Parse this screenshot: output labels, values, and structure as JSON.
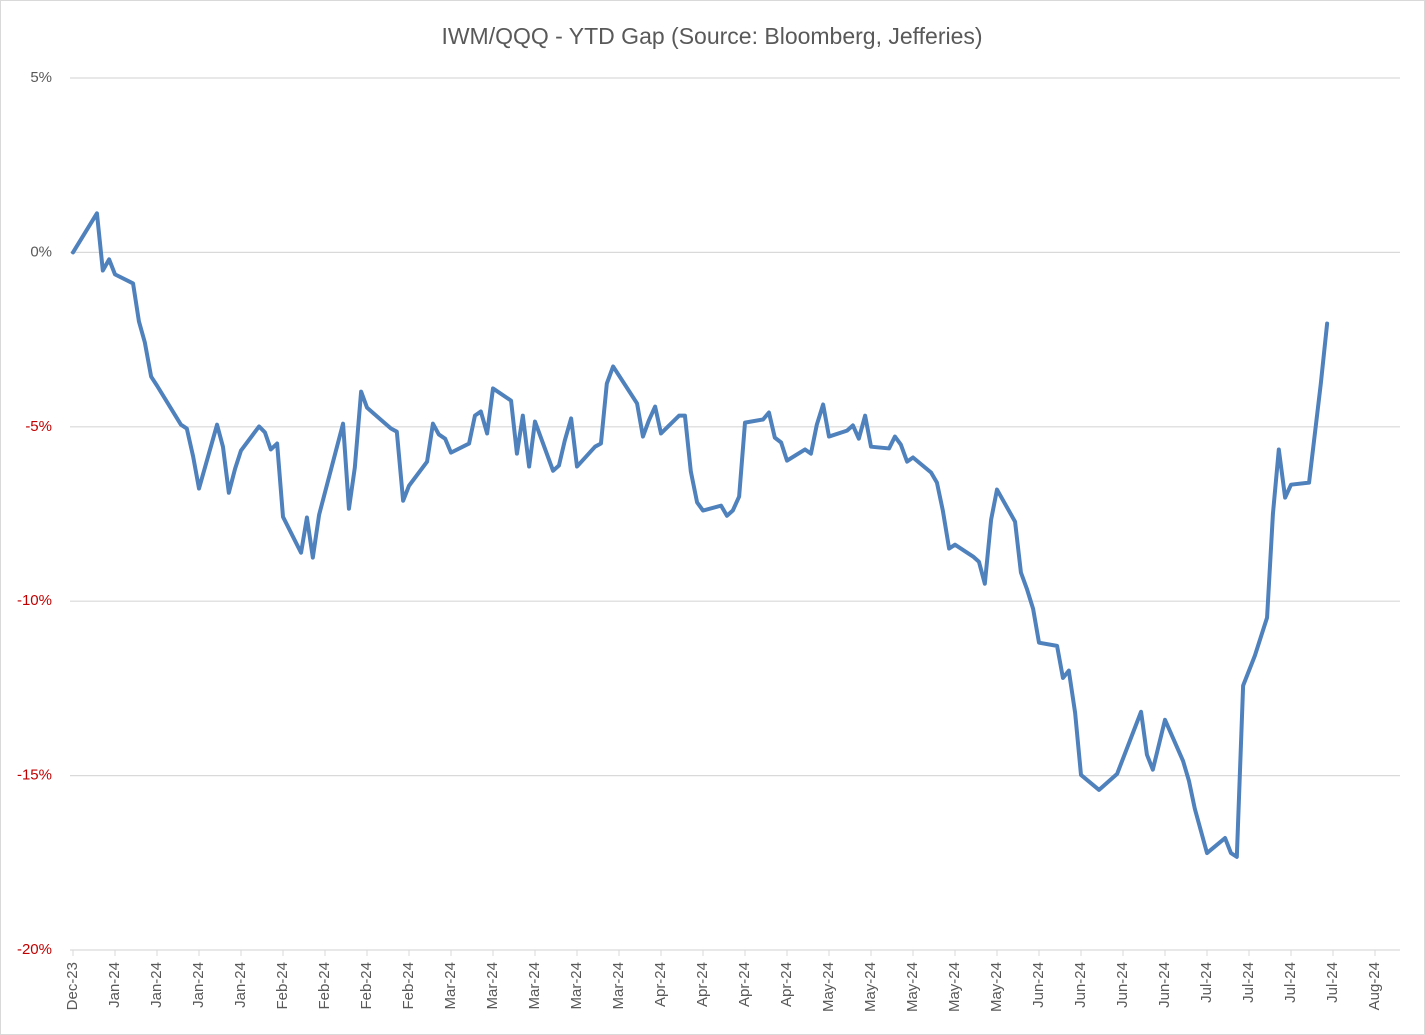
{
  "chart_data": {
    "type": "line",
    "title": "IWM/QQQ - YTD Gap (Source: Bloomberg, Jefferies)",
    "xlim": [
      0,
      31.5
    ],
    "xticks": [
      {
        "value": 0,
        "label": "Dec-23"
      },
      {
        "value": 1,
        "label": "Jan-24"
      },
      {
        "value": 2,
        "label": "Jan-24"
      },
      {
        "value": 3,
        "label": "Jan-24"
      },
      {
        "value": 4,
        "label": "Jan-24"
      },
      {
        "value": 5,
        "label": "Feb-24"
      },
      {
        "value": 6,
        "label": "Feb-24"
      },
      {
        "value": 7,
        "label": "Feb-24"
      },
      {
        "value": 8,
        "label": "Feb-24"
      },
      {
        "value": 9,
        "label": "Mar-24"
      },
      {
        "value": 10,
        "label": "Mar-24"
      },
      {
        "value": 11,
        "label": "Mar-24"
      },
      {
        "value": 12,
        "label": "Mar-24"
      },
      {
        "value": 13,
        "label": "Mar-24"
      },
      {
        "value": 14,
        "label": "Apr-24"
      },
      {
        "value": 15,
        "label": "Apr-24"
      },
      {
        "value": 16,
        "label": "Apr-24"
      },
      {
        "value": 17,
        "label": "Apr-24"
      },
      {
        "value": 18,
        "label": "May-24"
      },
      {
        "value": 19,
        "label": "May-24"
      },
      {
        "value": 20,
        "label": "May-24"
      },
      {
        "value": 21,
        "label": "May-24"
      },
      {
        "value": 22,
        "label": "May-24"
      },
      {
        "value": 23,
        "label": "Jun-24"
      },
      {
        "value": 24,
        "label": "Jun-24"
      },
      {
        "value": 25,
        "label": "Jun-24"
      },
      {
        "value": 26,
        "label": "Jun-24"
      },
      {
        "value": 27,
        "label": "Jul-24"
      },
      {
        "value": 28,
        "label": "Jul-24"
      },
      {
        "value": 29,
        "label": "Jul-24"
      },
      {
        "value": 30,
        "label": "Jul-24"
      },
      {
        "value": 31,
        "label": "Aug-24"
      }
    ],
    "ylim": [
      -20,
      5
    ],
    "yticks": [
      {
        "value": 5,
        "label": "5%"
      },
      {
        "value": 0,
        "label": "0%"
      },
      {
        "value": -5,
        "label": "-5%"
      },
      {
        "value": -10,
        "label": "-10%"
      },
      {
        "value": -15,
        "label": "-15%"
      },
      {
        "value": -20,
        "label": "-20%"
      }
    ],
    "grid": true,
    "negative_tick_color": "#c00000",
    "x": [
      0,
      0.57,
      0.71,
      0.86,
      1.0,
      1.43,
      1.57,
      1.71,
      1.86,
      2.0,
      2.57,
      2.71,
      2.86,
      3.0,
      3.43,
      3.57,
      3.71,
      3.86,
      4.0,
      4.43,
      4.57,
      4.71,
      4.86,
      5.0,
      5.43,
      5.57,
      5.71,
      5.86,
      6.43,
      6.57,
      6.71,
      6.86,
      7.0,
      7.57,
      7.71,
      7.86,
      8.0,
      8.43,
      8.57,
      8.71,
      8.86,
      9.0,
      9.43,
      9.57,
      9.71,
      9.86,
      10.0,
      10.43,
      10.57,
      10.71,
      10.86,
      11.0,
      11.43,
      11.57,
      11.71,
      11.86,
      12.0,
      12.43,
      12.57,
      12.71,
      12.86,
      13.43,
      13.57,
      13.71,
      13.86,
      14.0,
      14.43,
      14.57,
      14.71,
      14.86,
      15.0,
      15.43,
      15.57,
      15.71,
      15.86,
      16.0,
      16.43,
      16.57,
      16.71,
      16.86,
      17.0,
      17.43,
      17.57,
      17.71,
      17.86,
      18.0,
      18.43,
      18.57,
      18.71,
      18.86,
      19.0,
      19.43,
      19.57,
      19.71,
      19.86,
      20.0,
      20.43,
      20.57,
      20.71,
      20.86,
      21.0,
      21.43,
      21.57,
      21.71,
      21.86,
      22.0,
      22.43,
      22.57,
      22.71,
      22.86,
      23.0,
      23.43,
      23.57,
      23.71,
      23.86,
      24.0,
      24.43,
      24.86,
      25.43,
      25.57,
      25.71,
      26.0,
      26.43,
      26.57,
      26.71,
      27.0,
      27.43,
      27.57,
      27.71,
      27.86,
      28.14,
      28.43,
      28.57,
      28.71,
      28.86,
      29.0,
      29.43,
      29.71,
      29.86
    ],
    "series": [
      {
        "color": "#4f81bd",
        "values": [
          0,
          1.12,
          -0.52,
          -0.2,
          -0.63,
          -0.89,
          -1.98,
          -2.58,
          -3.56,
          -3.82,
          -4.94,
          -5.05,
          -5.85,
          -6.77,
          -4.94,
          -5.57,
          -6.89,
          -6.2,
          -5.68,
          -4.99,
          -5.16,
          -5.65,
          -5.48,
          -7.58,
          -8.61,
          -7.6,
          -8.75,
          -7.52,
          -4.91,
          -7.35,
          -6.17,
          -3.99,
          -4.45,
          -5.05,
          -5.14,
          -7.12,
          -6.69,
          -6.0,
          -4.91,
          -5.22,
          -5.34,
          -5.74,
          -5.48,
          -4.68,
          -4.56,
          -5.19,
          -3.9,
          -4.25,
          -5.77,
          -4.68,
          -6.14,
          -4.85,
          -6.26,
          -6.11,
          -5.39,
          -4.76,
          -6.14,
          -5.57,
          -5.48,
          -3.76,
          -3.27,
          -4.33,
          -5.28,
          -4.82,
          -4.42,
          -5.19,
          -4.68,
          -4.68,
          -6.28,
          -7.17,
          -7.4,
          -7.26,
          -7.55,
          -7.4,
          -7.0,
          -4.88,
          -4.79,
          -4.59,
          -5.31,
          -5.45,
          -5.97,
          -5.65,
          -5.77,
          -4.94,
          -4.36,
          -5.28,
          -5.11,
          -4.96,
          -5.34,
          -4.68,
          -5.57,
          -5.62,
          -5.28,
          -5.51,
          -6.0,
          -5.88,
          -6.31,
          -6.6,
          -7.4,
          -8.49,
          -8.38,
          -8.72,
          -8.87,
          -9.5,
          -7.66,
          -6.8,
          -7.72,
          -9.18,
          -9.64,
          -10.22,
          -11.19,
          -11.28,
          -12.2,
          -11.99,
          -13.2,
          -14.98,
          -15.41,
          -14.95,
          -13.17,
          -14.4,
          -14.83,
          -13.4,
          -14.58,
          -15.15,
          -15.95,
          -17.22,
          -16.79,
          -17.22,
          -17.33,
          -12.42,
          -11.56,
          -10.47,
          -7.49,
          -5.65,
          -7.03,
          -6.66,
          -6.6,
          -3.76,
          -2.04
        ]
      }
    ]
  }
}
